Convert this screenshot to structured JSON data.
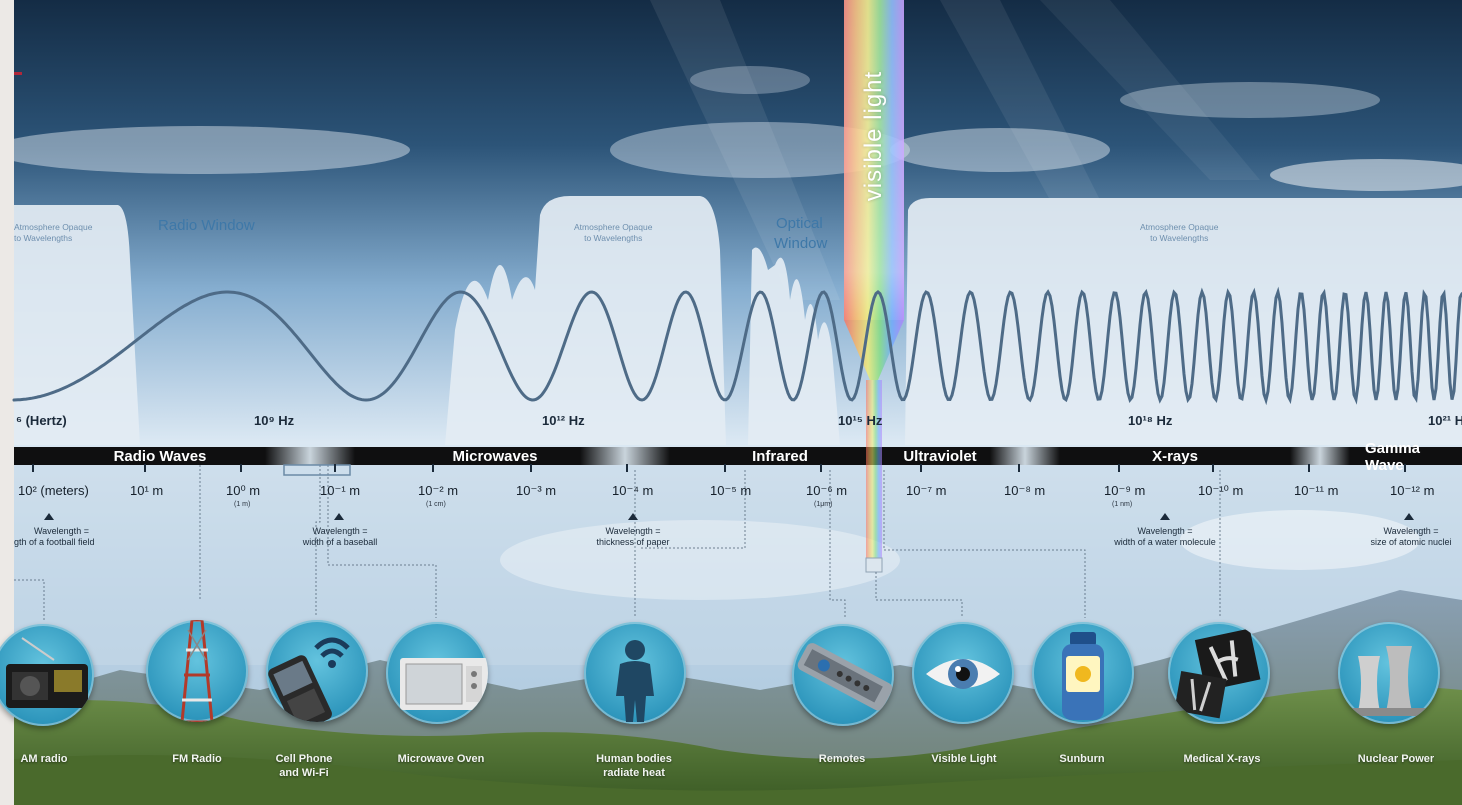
{
  "spectrum": {
    "visible_light_label": "visible light",
    "frequency_labels": [
      {
        "id": "hertz",
        "text": "⁶ (Hertz)"
      },
      {
        "id": "f9",
        "text": "10⁹ Hz"
      },
      {
        "id": "f12",
        "text": "10¹² Hz"
      },
      {
        "id": "f15",
        "text": "10¹⁵ Hz"
      },
      {
        "id": "f18",
        "text": "10¹⁸ Hz"
      },
      {
        "id": "f21",
        "text": "10²¹ H"
      }
    ],
    "bands": [
      {
        "id": "radio",
        "label": "Radio Waves"
      },
      {
        "id": "micro",
        "label": "Microwaves"
      },
      {
        "id": "infra",
        "label": "Infrared"
      },
      {
        "id": "uv",
        "label": "Ultraviolet"
      },
      {
        "id": "xray",
        "label": "X-rays"
      },
      {
        "id": "gamma",
        "label": "Gamma Wave"
      }
    ],
    "wavelengths": [
      {
        "text": "10² (meters)",
        "sub": ""
      },
      {
        "text": "10¹ m",
        "sub": ""
      },
      {
        "text": "10⁰ m",
        "sub": "(1 m)"
      },
      {
        "text": "10⁻¹ m",
        "sub": ""
      },
      {
        "text": "10⁻² m",
        "sub": "(1 cm)"
      },
      {
        "text": "10⁻³ m",
        "sub": ""
      },
      {
        "text": "10⁻⁴ m",
        "sub": ""
      },
      {
        "text": "10⁻⁵ m",
        "sub": ""
      },
      {
        "text": "10⁻⁶ m",
        "sub": "(1μm)"
      },
      {
        "text": "10⁻⁷ m",
        "sub": ""
      },
      {
        "text": "10⁻⁸ m",
        "sub": ""
      },
      {
        "text": "10⁻⁹ m",
        "sub": "(1 nm)"
      },
      {
        "text": "10⁻¹⁰ m",
        "sub": ""
      },
      {
        "text": "10⁻¹¹ m",
        "sub": ""
      },
      {
        "text": "10⁻¹² m",
        "sub": ""
      }
    ],
    "comparisons": [
      {
        "line1": "Wavelength =",
        "line2": "gth of a football field"
      },
      {
        "line1": "Wavelength =",
        "line2": "width of a baseball"
      },
      {
        "line1": "Wavelength =",
        "line2": "thickness of paper"
      },
      {
        "line1": "Wavelength =",
        "line2": "width of a water molecule"
      },
      {
        "line1": "Wavelength =",
        "line2": "size of atomic nuclei"
      }
    ],
    "windows": {
      "radio": "Radio Window",
      "optical_line1": "Optical",
      "optical_line2": "Window"
    },
    "opaque_regions": [
      {
        "line1": "Atmosphere Opaque",
        "line2": "to Wavelengths"
      },
      {
        "line1": "Atmosphere Opaque",
        "line2": "to Wavelengths"
      },
      {
        "line1": "Atmosphere Opaque",
        "line2": "to Wavelengths"
      }
    ],
    "examples": [
      {
        "id": "am",
        "line1": "AM radio",
        "line2": "",
        "icon": "radio-icon"
      },
      {
        "id": "fm",
        "line1": "FM Radio",
        "line2": "",
        "icon": "radio-tower-icon"
      },
      {
        "id": "cell",
        "line1": "Cell Phone",
        "line2": "and Wi-Fi",
        "icon": "cell-phone-wifi-icon"
      },
      {
        "id": "oven",
        "line1": "Microwave Oven",
        "line2": "",
        "icon": "microwave-oven-icon"
      },
      {
        "id": "human",
        "line1": "Human bodies",
        "line2": "radiate heat",
        "icon": "human-silhouette-icon"
      },
      {
        "id": "remote",
        "line1": "Remotes",
        "line2": "",
        "icon": "remote-control-icon"
      },
      {
        "id": "eye",
        "line1": "Visible Light",
        "line2": "",
        "icon": "eye-icon"
      },
      {
        "id": "sun",
        "line1": "Sunburn",
        "line2": "",
        "icon": "sunscreen-bottle-icon"
      },
      {
        "id": "xray",
        "line1": "Medical X-rays",
        "line2": "",
        "icon": "x-ray-film-icon"
      },
      {
        "id": "nuclear",
        "line1": "Nuclear Power",
        "line2": "",
        "icon": "cooling-tower-icon"
      }
    ]
  },
  "colors": {
    "sky_top": "#1a3550",
    "sky_mid": "#6f9ec4",
    "opaque_fill": "#dfe9f1",
    "wave": "#4e6b87",
    "band_bar": "#0f0f10",
    "circle": "#3aa6cc",
    "accent": "#b0283a"
  }
}
